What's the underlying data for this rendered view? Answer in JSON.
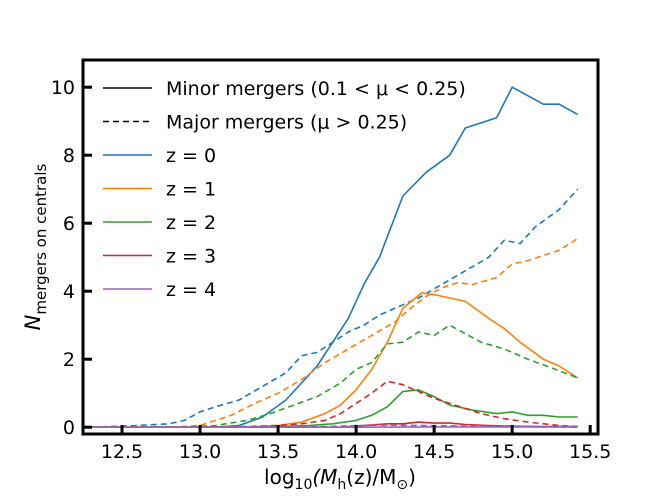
{
  "chart_data": {
    "type": "line",
    "xlabel": {
      "prefix": "log",
      "prefix_sub": "10",
      "body": "(M",
      "body_sub": "h",
      "mid": "(z)/M",
      "mid_sub": "⊙",
      "suffix": ")"
    },
    "ylabel": {
      "main": "N",
      "sub": "mergers on centrals"
    },
    "xlim": [
      12.25,
      15.55
    ],
    "ylim": [
      -0.2,
      10.8
    ],
    "xticks": [
      12.5,
      13.0,
      13.5,
      14.0,
      14.5,
      15.0,
      15.5
    ],
    "xtick_labels": [
      "12.5",
      "13.0",
      "13.5",
      "14.0",
      "14.5",
      "15.0",
      "15.5"
    ],
    "yticks": [
      0,
      2,
      4,
      6,
      8,
      10
    ],
    "ytick_labels": [
      "0",
      "2",
      "4",
      "6",
      "8",
      "10"
    ],
    "grid": false,
    "legend_position": "top-left",
    "legend": [
      {
        "label": "Minor mergers (0.1 < μ < 0.25)",
        "style": "solid",
        "color": "#000000"
      },
      {
        "label": "Major mergers (μ > 0.25)",
        "style": "dashed",
        "color": "#000000"
      },
      {
        "label": "z = 0",
        "style": "solid",
        "color": "#1f77b4"
      },
      {
        "label": "z = 1",
        "style": "solid",
        "color": "#ff7f0e"
      },
      {
        "label": "z = 2",
        "style": "solid",
        "color": "#2ca02c"
      },
      {
        "label": "z = 3",
        "style": "solid",
        "color": "#d62728"
      },
      {
        "label": "z = 4",
        "style": "solid",
        "color": "#9467bd"
      }
    ],
    "series": [
      {
        "z": "0",
        "kind": "minor",
        "color": "#1f77b4",
        "style": "solid",
        "x": [
          12.3,
          12.6,
          12.9,
          13.1,
          13.25,
          13.4,
          13.55,
          13.65,
          13.75,
          13.85,
          13.95,
          14.05,
          14.15,
          14.3,
          14.45,
          14.6,
          14.7,
          14.9,
          15.0,
          15.2,
          15.3,
          15.42
        ],
        "y": [
          0,
          0,
          0,
          0,
          0.05,
          0.3,
          0.8,
          1.3,
          1.8,
          2.5,
          3.2,
          4.2,
          5.0,
          6.8,
          7.5,
          8.0,
          8.8,
          9.1,
          10.0,
          9.5,
          9.5,
          9.2
        ]
      },
      {
        "z": "0",
        "kind": "major",
        "color": "#1f77b4",
        "style": "dashed",
        "x": [
          12.3,
          12.6,
          12.8,
          12.9,
          13.0,
          13.1,
          13.25,
          13.4,
          13.55,
          13.65,
          13.75,
          13.85,
          13.95,
          14.05,
          14.15,
          14.3,
          14.4,
          14.55,
          14.7,
          14.85,
          14.95,
          15.05,
          15.15,
          15.3,
          15.42
        ],
        "y": [
          0,
          0.05,
          0.1,
          0.2,
          0.45,
          0.6,
          0.8,
          1.2,
          1.6,
          2.1,
          2.2,
          2.5,
          2.8,
          3.0,
          3.3,
          3.6,
          3.8,
          4.2,
          4.6,
          5.0,
          5.5,
          5.4,
          5.9,
          6.4,
          7.0
        ]
      },
      {
        "z": "1",
        "kind": "minor",
        "color": "#ff7f0e",
        "style": "solid",
        "x": [
          12.3,
          12.7,
          13.0,
          13.3,
          13.5,
          13.65,
          13.8,
          13.9,
          14.0,
          14.1,
          14.2,
          14.3,
          14.42,
          14.5,
          14.6,
          14.7,
          14.85,
          14.95,
          15.05,
          15.2,
          15.3,
          15.42
        ],
        "y": [
          0,
          0,
          0,
          0,
          0.05,
          0.15,
          0.4,
          0.65,
          1.1,
          1.7,
          2.5,
          3.5,
          3.95,
          3.9,
          3.8,
          3.7,
          3.2,
          2.9,
          2.5,
          2.0,
          1.8,
          1.45
        ]
      },
      {
        "z": "1",
        "kind": "major",
        "color": "#ff7f0e",
        "style": "dashed",
        "x": [
          12.3,
          12.8,
          13.0,
          13.2,
          13.35,
          13.5,
          13.65,
          13.8,
          13.95,
          14.1,
          14.25,
          14.35,
          14.45,
          14.55,
          14.65,
          14.75,
          14.9,
          15.0,
          15.1,
          15.2,
          15.3,
          15.42
        ],
        "y": [
          0,
          0,
          0.05,
          0.35,
          0.7,
          1.0,
          1.4,
          1.9,
          2.3,
          2.7,
          3.1,
          3.5,
          3.85,
          4.1,
          4.25,
          4.2,
          4.4,
          4.8,
          4.9,
          5.05,
          5.2,
          5.55
        ]
      },
      {
        "z": "2",
        "kind": "minor",
        "color": "#2ca02c",
        "style": "solid",
        "x": [
          12.3,
          12.9,
          13.4,
          13.7,
          13.85,
          14.0,
          14.1,
          14.2,
          14.3,
          14.4,
          14.5,
          14.6,
          14.75,
          14.9,
          15.0,
          15.1,
          15.2,
          15.3,
          15.42
        ],
        "y": [
          0,
          0,
          0,
          0.05,
          0.1,
          0.2,
          0.35,
          0.6,
          1.05,
          1.1,
          0.9,
          0.65,
          0.5,
          0.4,
          0.45,
          0.35,
          0.35,
          0.3,
          0.3
        ]
      },
      {
        "z": "2",
        "kind": "major",
        "color": "#2ca02c",
        "style": "dashed",
        "x": [
          12.3,
          12.9,
          13.1,
          13.3,
          13.45,
          13.6,
          13.75,
          13.9,
          14.0,
          14.1,
          14.2,
          14.3,
          14.4,
          14.5,
          14.6,
          14.7,
          14.8,
          14.95,
          15.1,
          15.25,
          15.42
        ],
        "y": [
          0,
          0,
          0.05,
          0.2,
          0.4,
          0.65,
          0.9,
          1.3,
          1.7,
          1.9,
          2.45,
          2.5,
          2.8,
          2.7,
          3.0,
          2.75,
          2.5,
          2.3,
          2.0,
          1.75,
          1.45
        ]
      },
      {
        "z": "3",
        "kind": "minor",
        "color": "#d62728",
        "style": "solid",
        "x": [
          12.3,
          13.0,
          13.5,
          13.9,
          14.05,
          14.2,
          14.3,
          14.4,
          14.5,
          14.6,
          14.7,
          14.85,
          15.0,
          15.2,
          15.42
        ],
        "y": [
          0,
          0,
          0,
          0,
          0.05,
          0.1,
          0.1,
          0.15,
          0.12,
          0.12,
          0.08,
          0.05,
          0.03,
          0.02,
          0.02
        ]
      },
      {
        "z": "3",
        "kind": "major",
        "color": "#d62728",
        "style": "dashed",
        "x": [
          12.3,
          13.0,
          13.3,
          13.5,
          13.65,
          13.8,
          13.9,
          14.0,
          14.1,
          14.2,
          14.3,
          14.4,
          14.5,
          14.6,
          14.7,
          14.8,
          14.95,
          15.1,
          15.3,
          15.42
        ],
        "y": [
          0,
          0,
          0.02,
          0.05,
          0.1,
          0.2,
          0.4,
          0.7,
          1.0,
          1.35,
          1.25,
          1.05,
          0.85,
          0.7,
          0.55,
          0.4,
          0.25,
          0.15,
          0.05,
          0.02
        ]
      },
      {
        "z": "4",
        "kind": "minor",
        "color": "#9467bd",
        "style": "solid",
        "x": [
          12.3,
          13.5,
          14.0,
          14.5,
          15.0,
          15.42
        ],
        "y": [
          0,
          0,
          0,
          0.01,
          0.01,
          0.01
        ]
      },
      {
        "z": "4",
        "kind": "major",
        "color": "#9467bd",
        "style": "dashed",
        "x": [
          12.3,
          13.0,
          13.5,
          13.8,
          14.0,
          14.2,
          14.4,
          14.6,
          14.8,
          15.0,
          15.2,
          15.42
        ],
        "y": [
          0,
          0,
          0.01,
          0.02,
          0.05,
          0.06,
          0.05,
          0.04,
          0.03,
          0.02,
          0.01,
          0.0
        ]
      }
    ]
  }
}
